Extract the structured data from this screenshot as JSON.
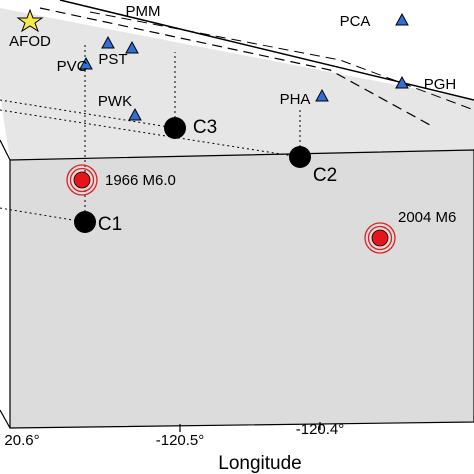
{
  "stations": [
    {
      "label": "AFOD"
    },
    {
      "label": "PMM"
    },
    {
      "label": "PVC"
    },
    {
      "label": "PST"
    },
    {
      "label": "PCA"
    },
    {
      "label": "PWK"
    },
    {
      "label": "PHA"
    },
    {
      "label": "PGH"
    }
  ],
  "hypocenters": [
    {
      "label": "C1"
    },
    {
      "label": "C2"
    },
    {
      "label": "C3"
    }
  ],
  "events": [
    {
      "label": "1966 M6.0"
    },
    {
      "label": "2004 M6"
    }
  ],
  "axis": {
    "ticks": [
      "20.6°",
      "-120.5°",
      "-120.4°"
    ],
    "label": "Longitude"
  }
}
